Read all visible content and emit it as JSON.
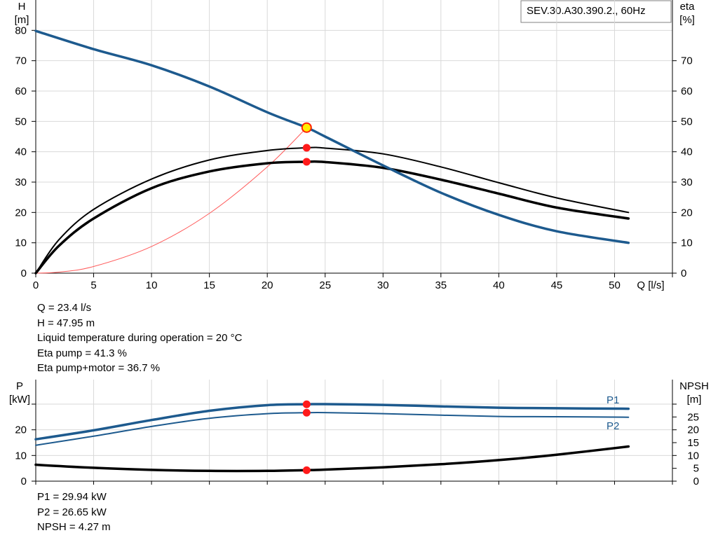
{
  "model_label": "SEV.30.A30.390.2., 60Hz",
  "top_info": {
    "q": "Q = 23.4 l/s",
    "h": "H = 47.95 m",
    "temp": "Liquid temperature during operation = 20 °C",
    "eta_pump": "Eta pump = 41.3 %",
    "eta_total": "Eta pump+motor = 36.7 %"
  },
  "bottom_info": {
    "p1": "P1 = 29.94 kW",
    "p2": "P2 = 26.65 kW",
    "npsh": "NPSH = 4.27 m"
  },
  "chart_data": [
    {
      "type": "line",
      "xlabel": "Q [l/s]",
      "ylabel": "H\n[m]",
      "y2label": "eta\n[%]",
      "xlim": [
        0,
        55
      ],
      "ylim": [
        0,
        90
      ],
      "y2lim": [
        0,
        90
      ],
      "grid": true,
      "x_ticks": [
        0,
        5,
        10,
        15,
        20,
        25,
        30,
        35,
        40,
        45,
        50
      ],
      "y_ticks": [
        0,
        10,
        20,
        30,
        40,
        50,
        60,
        70,
        80
      ],
      "y2_ticks": [
        0,
        10,
        20,
        30,
        40,
        50,
        60,
        70
      ],
      "series": [
        {
          "role": "head",
          "color": "#1d5a8e",
          "x": [
            0,
            5,
            10,
            15,
            20,
            23.4,
            25,
            30,
            35,
            40,
            45,
            51.2
          ],
          "values": [
            79.8,
            73.8,
            68.5,
            61.5,
            53,
            47.95,
            45,
            35.5,
            26.5,
            19.2,
            13.8,
            10
          ]
        },
        {
          "role": "eta-pump",
          "color": "#000000",
          "x": [
            0,
            2,
            5,
            10,
            15,
            20,
            23.4,
            25,
            30,
            35,
            40,
            45,
            51.2
          ],
          "values": [
            0,
            11,
            21,
            31,
            37.3,
            40.4,
            41.3,
            41.2,
            39.3,
            35,
            29.8,
            24.8,
            20
          ]
        },
        {
          "role": "eta-pump-motor",
          "color": "#000000",
          "x": [
            0,
            2,
            5,
            10,
            15,
            20,
            23.4,
            25,
            30,
            35,
            40,
            45,
            51.2
          ],
          "values": [
            0,
            9,
            18,
            28,
            33.5,
            36.2,
            36.7,
            36.6,
            34.7,
            30.8,
            26.2,
            21.6,
            18
          ]
        },
        {
          "role": "system-curve",
          "color": "#ff5a5a",
          "x": [
            0,
            2,
            5,
            10,
            15,
            20,
            23.4
          ],
          "values": [
            0,
            0.35,
            2.2,
            8.8,
            19.7,
            35,
            47.95
          ]
        }
      ],
      "operating_points": [
        {
          "x": 23.4,
          "y": 47.95,
          "color": "#ffee00",
          "ring": "#ff2000"
        },
        {
          "x": 23.4,
          "y": 41.3,
          "color": "#ff1a1a"
        },
        {
          "x": 23.4,
          "y": 36.7,
          "color": "#ff1a1a"
        }
      ]
    },
    {
      "type": "line",
      "ylabel": "P\n[kW]",
      "y2label": "NPSH\n[m]",
      "xlim": [
        0,
        55
      ],
      "ylim": [
        0,
        30
      ],
      "y2lim": [
        0,
        30
      ],
      "grid": true,
      "y_ticks": [
        0,
        10,
        20
      ],
      "y2_ticks": [
        0,
        5,
        10,
        15,
        20,
        25
      ],
      "series": [
        {
          "name": "P1",
          "color": "#1d5a8e",
          "x": [
            0,
            5,
            10,
            15,
            20,
            23.4,
            25,
            30,
            35,
            40,
            45,
            51.2
          ],
          "values": [
            16.3,
            19.8,
            23.8,
            27.4,
            29.6,
            29.94,
            30.0,
            29.7,
            29.1,
            28.6,
            28.4,
            28.2
          ]
        },
        {
          "name": "P2",
          "color": "#1d5a8e",
          "x": [
            0,
            5,
            10,
            15,
            20,
            23.4,
            25,
            30,
            35,
            40,
            45,
            51.2
          ],
          "values": [
            14.0,
            17.5,
            21.3,
            24.5,
            26.3,
            26.65,
            26.7,
            26.3,
            25.7,
            25.2,
            25.1,
            24.9
          ]
        },
        {
          "role": "npsh",
          "color": "#000000",
          "x": [
            0,
            5,
            10,
            15,
            20,
            23.4,
            25,
            30,
            35,
            40,
            45,
            51.2
          ],
          "values": [
            6.4,
            5.2,
            4.4,
            4.0,
            4.0,
            4.27,
            4.5,
            5.4,
            6.6,
            8.2,
            10.3,
            13.5
          ]
        }
      ],
      "operating_points": [
        {
          "x": 23.4,
          "y": 29.94,
          "color": "#ff1a1a"
        },
        {
          "x": 23.4,
          "y": 26.65,
          "color": "#ff1a1a"
        },
        {
          "x": 23.4,
          "y": 4.27,
          "color": "#ff1a1a"
        }
      ]
    }
  ]
}
